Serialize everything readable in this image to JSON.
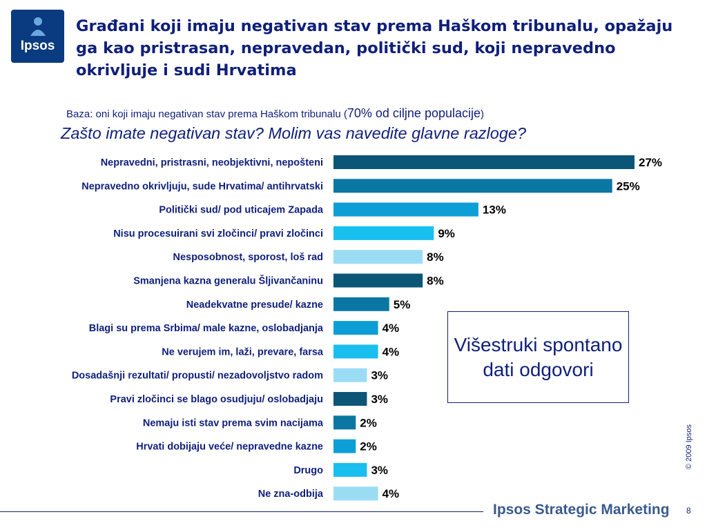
{
  "logo": {
    "text": "Ipsos"
  },
  "title": "Građani koji imaju negativan stav prema Haškom tribunalu, opažaju ga kao pristrasan, nepravedan, politički sud, koji nepravedno okrivljuje i sudi Hrvatima",
  "base_text": "Baza: oni koji imaju negativan stav prema Haškom tribunalu (",
  "base_highlight": "70% od ciljne populacije",
  "base_close": ")",
  "question": "Zašto imate negativan stav? Molim vas navedite glavne razloge?",
  "note": "Višestruki spontano dati odgovori",
  "copyright": "© 2009 Ipsos",
  "footer_brand": "Ipsos Strategic Marketing",
  "page_number": "8",
  "chart_data": {
    "type": "bar",
    "orientation": "horizontal",
    "categories": [
      "Nepravedni, pristrasni, neobjektivni, nepošteni",
      "Nepravedno okrivljuju, sude Hrvatima/ antihrvatski",
      "Politički sud/ pod uticajem Zapada",
      "Nisu procesuirani svi zločinci/ pravi zločinci",
      "Nesposobnost, sporost, loš rad",
      "Smanjena kazna generalu Šljivančaninu",
      "Neadekvatne presude/ kazne",
      "Blagi su prema Srbima/ male kazne, oslobadjanja",
      "Ne verujem im, laži, prevare, farsa",
      "Dosadašnji rezultati/ propusti/ nezadovoljstvo radom",
      "Pravi zločinci se blago osudjuju/ oslobadjaju",
      "Nemaju isti stav prema svim nacijama",
      "Hrvati dobijaju veće/ nepravedne kazne",
      "Drugo",
      "Ne zna-odbija"
    ],
    "values": [
      27,
      25,
      13,
      9,
      8,
      8,
      5,
      4,
      4,
      3,
      3,
      2,
      2,
      3,
      4
    ],
    "value_labels": [
      "27%",
      "25%",
      "13%",
      "9%",
      "8%",
      "8%",
      "5%",
      "4%",
      "4%",
      "3%",
      "3%",
      "2%",
      "2%",
      "3%",
      "4%"
    ],
    "colors": [
      "#0b5577",
      "#0a77a3",
      "#0c9fd6",
      "#19bfef",
      "#9bdcf5",
      "#0b5577",
      "#0a77a3",
      "#0c9fd6",
      "#19bfef",
      "#9bdcf5",
      "#0b5577",
      "#0a77a3",
      "#0c9fd6",
      "#19bfef",
      "#9bdcf5"
    ],
    "xlim": [
      0,
      27
    ],
    "grid": false,
    "label_color": "#0f1f7a"
  }
}
